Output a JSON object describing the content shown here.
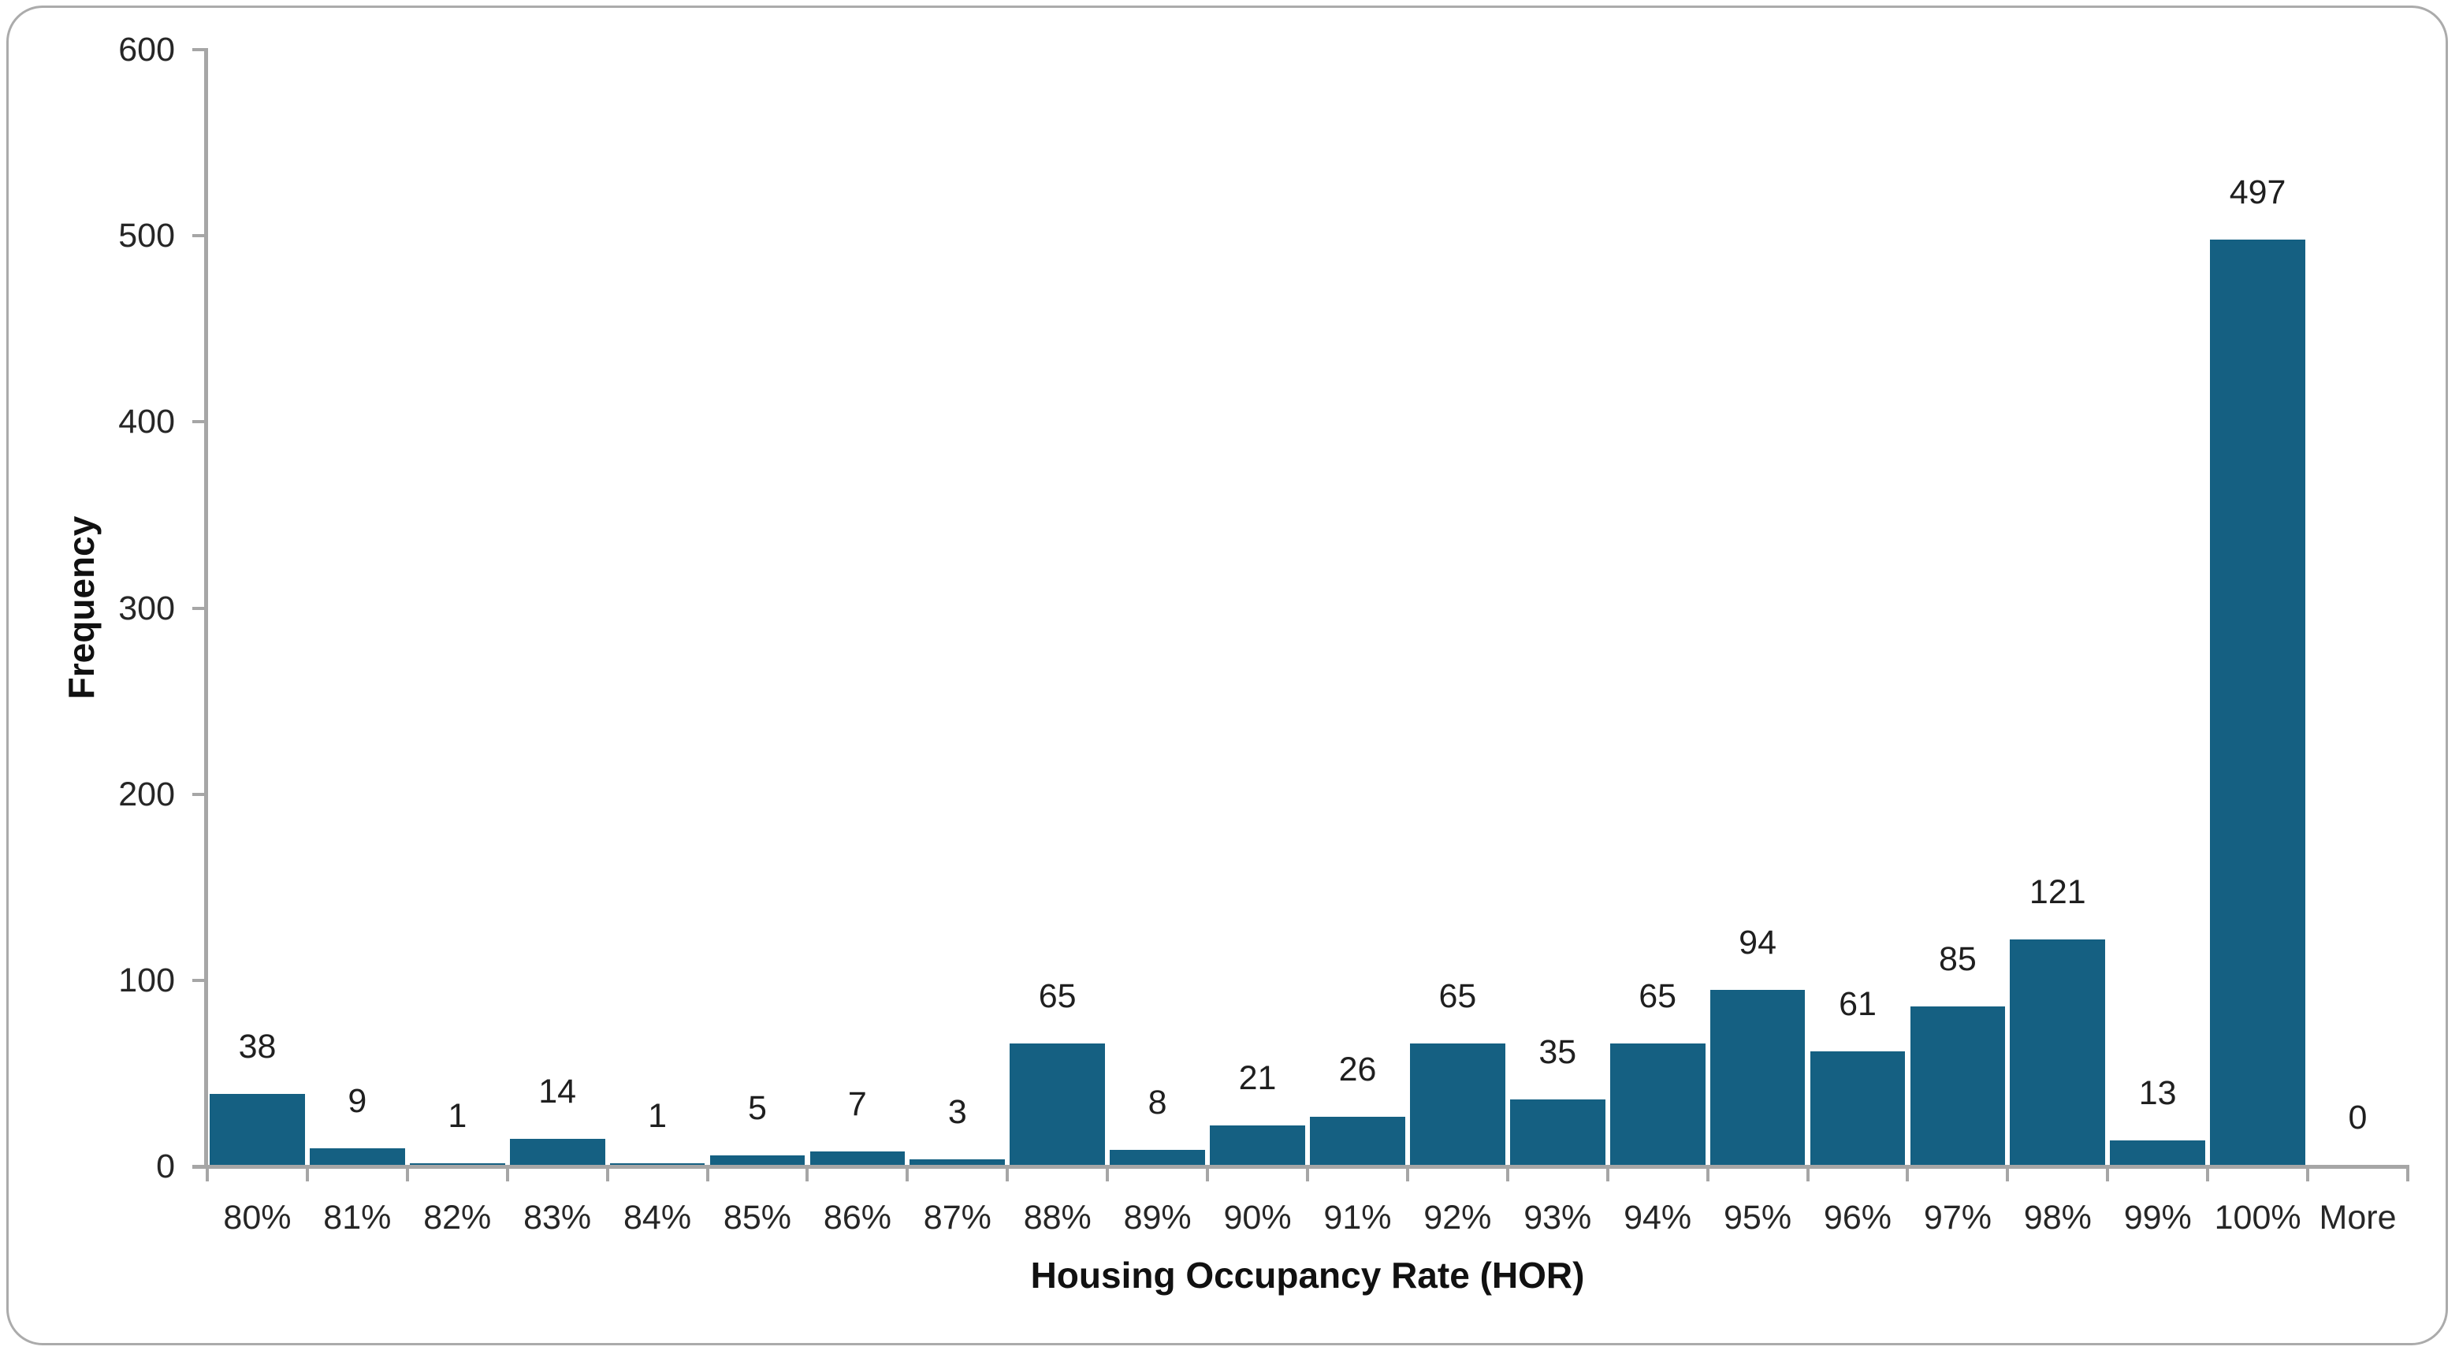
{
  "chart_data": {
    "type": "bar",
    "title": "",
    "xlabel": "Housing Occupancy Rate (HOR)",
    "ylabel": "Frequency",
    "categories": [
      "80%",
      "81%",
      "82%",
      "83%",
      "84%",
      "85%",
      "86%",
      "87%",
      "88%",
      "89%",
      "90%",
      "91%",
      "92%",
      "93%",
      "94%",
      "95%",
      "96%",
      "97%",
      "98%",
      "99%",
      "100%",
      "More"
    ],
    "values": [
      38,
      9,
      1,
      14,
      1,
      5,
      7,
      3,
      65,
      8,
      21,
      26,
      65,
      35,
      65,
      94,
      61,
      85,
      121,
      13,
      497,
      0
    ],
    "data_labels": [
      38,
      9,
      1,
      14,
      1,
      5,
      7,
      3,
      65,
      8,
      21,
      26,
      65,
      35,
      65,
      94,
      61,
      85,
      121,
      13,
      497,
      0
    ],
    "ylim": [
      0,
      600
    ],
    "yticks": [
      0,
      100,
      200,
      300,
      400,
      500,
      600
    ],
    "grid": false,
    "legend_position": "none",
    "bar_color": "#156082",
    "axis_color": "#a6a6a6",
    "text_color": "#262626"
  }
}
